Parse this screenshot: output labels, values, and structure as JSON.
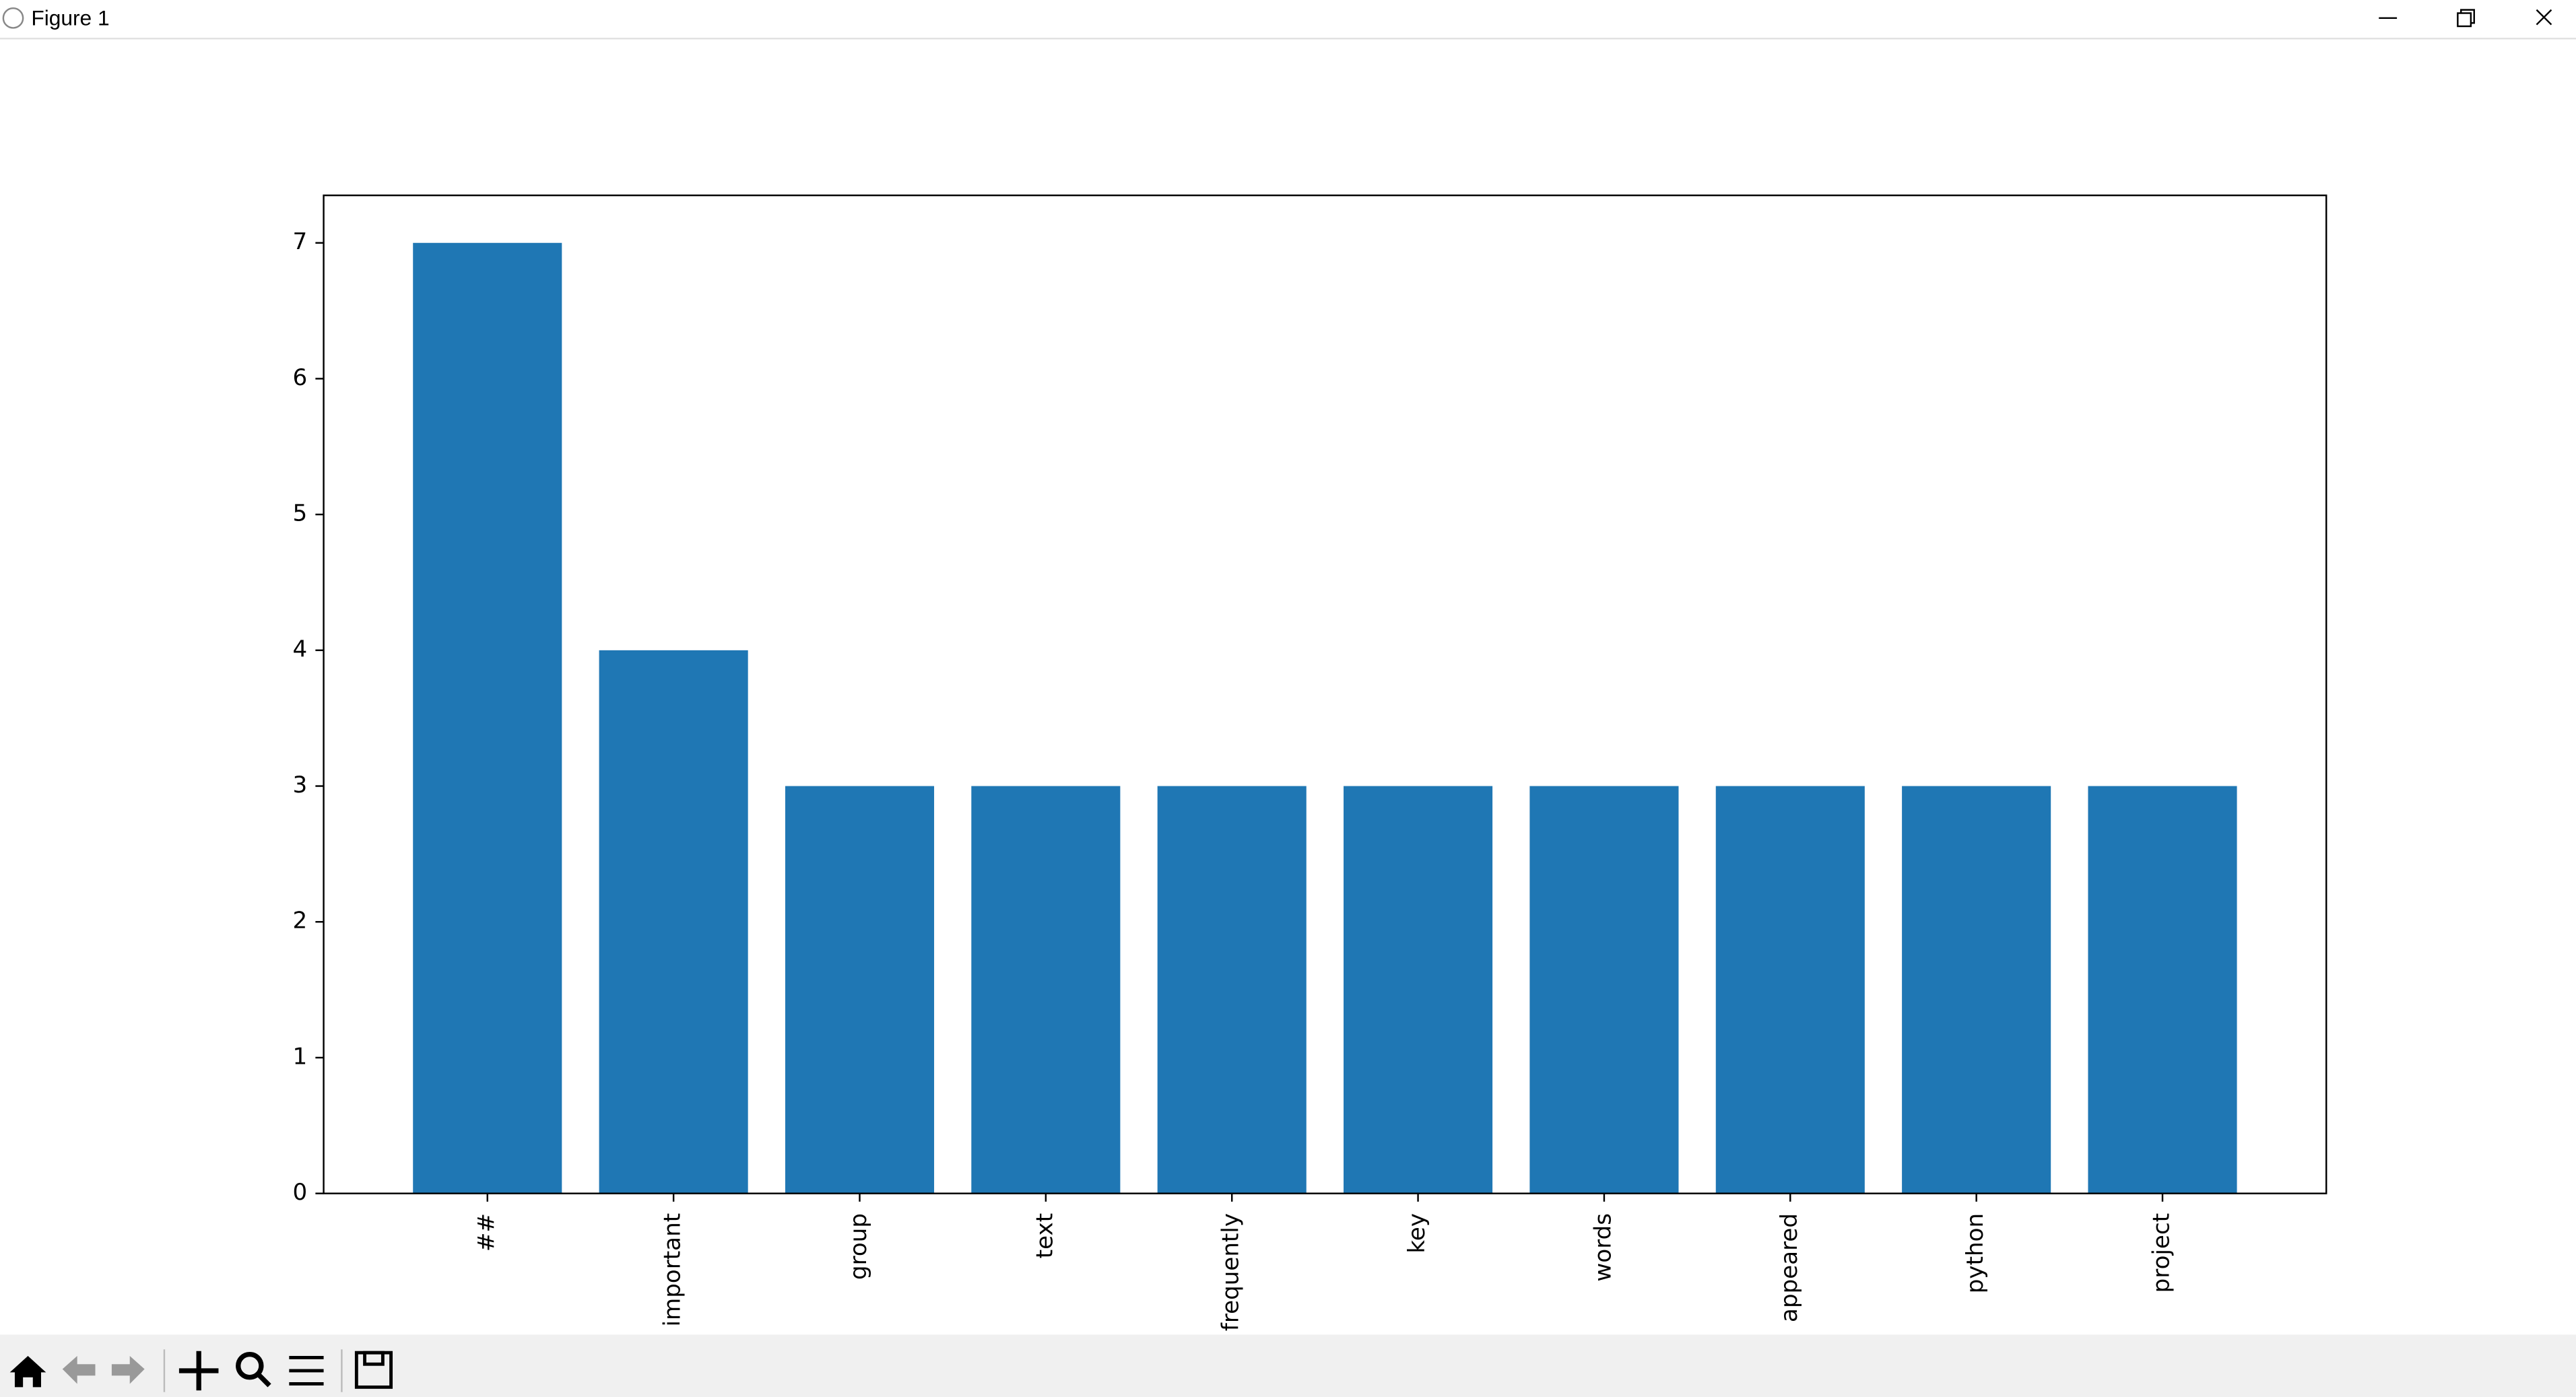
{
  "window": {
    "title": "Figure 1"
  },
  "chart_data": {
    "type": "bar",
    "categories": [
      "##",
      "important",
      "group",
      "text",
      "frequently",
      "key",
      "words",
      "appeared",
      "python",
      "project"
    ],
    "values": [
      7,
      4,
      3,
      3,
      3,
      3,
      3,
      3,
      3,
      3
    ],
    "color": "#1f77b4",
    "ylim": [
      0,
      7.35
    ],
    "yticks": [
      0,
      1,
      2,
      3,
      4,
      5,
      6,
      7
    ],
    "grid": false
  }
}
